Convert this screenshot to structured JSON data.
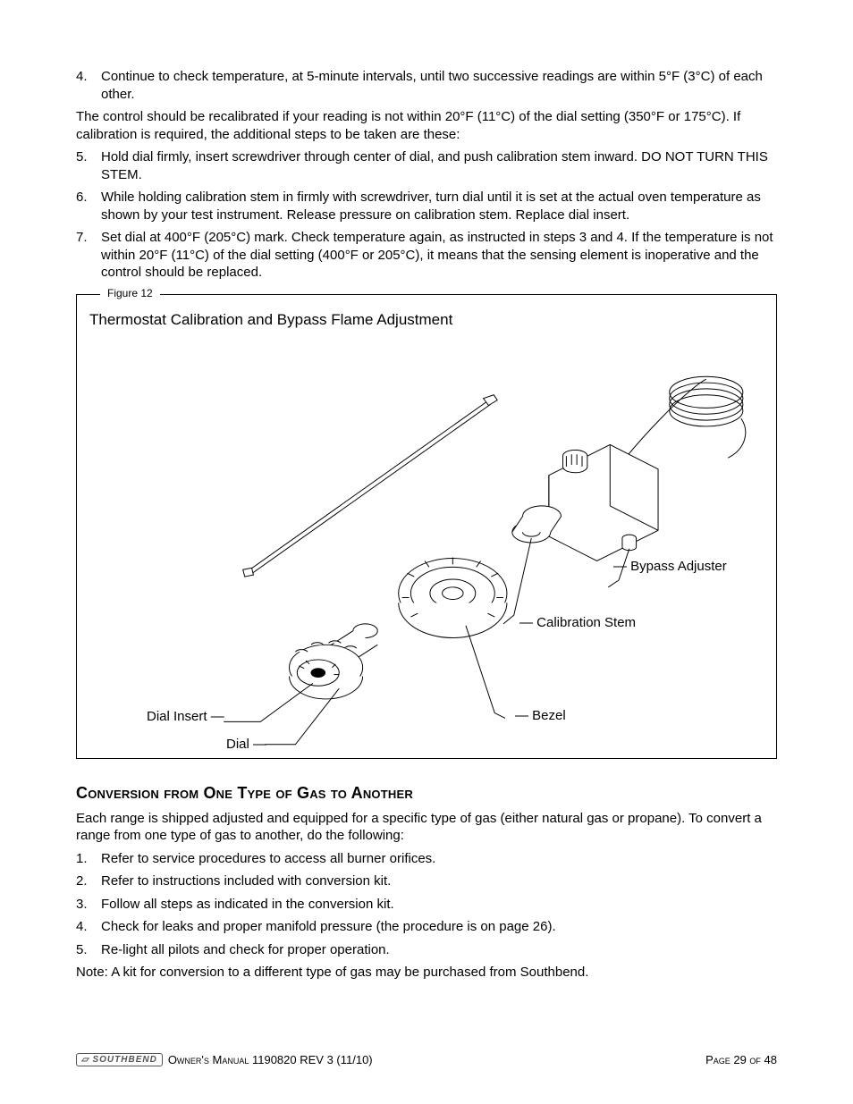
{
  "steps_a": [
    {
      "num": "4.",
      "text": "Continue to check temperature, at 5-minute intervals, until two successive readings are within 5°F (3°C) of each other."
    }
  ],
  "mid_para": "The control should be recalibrated if your reading is not within 20°F (11°C) of the dial setting (350°F or 175°C). If calibration is required, the additional steps to be taken are these:",
  "steps_b": [
    {
      "num": "5.",
      "text": "Hold dial firmly, insert screwdriver through center of dial, and push calibration stem inward. DO NOT TURN THIS STEM."
    },
    {
      "num": "6.",
      "text": "While holding calibration stem in firmly with screwdriver, turn dial until it is set at the actual oven temperature as shown by your test instrument. Release pressure on calibration stem. Replace dial insert."
    },
    {
      "num": "7.",
      "text": "Set dial at 400°F (205°C) mark. Check temperature again, as instructed in steps 3 and 4. If the temperature is not within 20°F (11°C) of the dial setting (400°F or 205°C), it means that the sensing element is inoperative and the control should be replaced."
    }
  ],
  "figure": {
    "label": "Figure 12",
    "title": "Thermostat Calibration and Bypass Flame Adjustment",
    "callouts": {
      "bypass": "Bypass Adjuster",
      "calib": "Calibration Stem",
      "bezel": "Bezel",
      "dial_insert": "Dial Insert",
      "dial": "Dial"
    }
  },
  "section2": {
    "heading": "Conversion from One Type of Gas to Another",
    "intro": "Each range is shipped adjusted and equipped for a specific type of gas (either natural gas or propane). To convert a range from one type of gas to another, do the following:",
    "steps": [
      {
        "num": "1.",
        "text": "Refer to service procedures to access all burner orifices."
      },
      {
        "num": "2.",
        "text": "Refer to instructions included with conversion kit."
      },
      {
        "num": "3.",
        "text": "Follow all steps as indicated in the conversion kit."
      },
      {
        "num": "4.",
        "text": "Check for leaks and proper manifold pressure (the procedure is on page 26)."
      },
      {
        "num": "5.",
        "text": "Re-light all pilots and check for proper operation."
      }
    ],
    "note": "Note: A kit for conversion to a different type of gas may be purchased from Southbend."
  },
  "footer": {
    "logo": "SOUTHBEND",
    "manual": "Owner's Manual 1190820 REV 3 (11/10)",
    "page": "Page 29 of 48"
  }
}
